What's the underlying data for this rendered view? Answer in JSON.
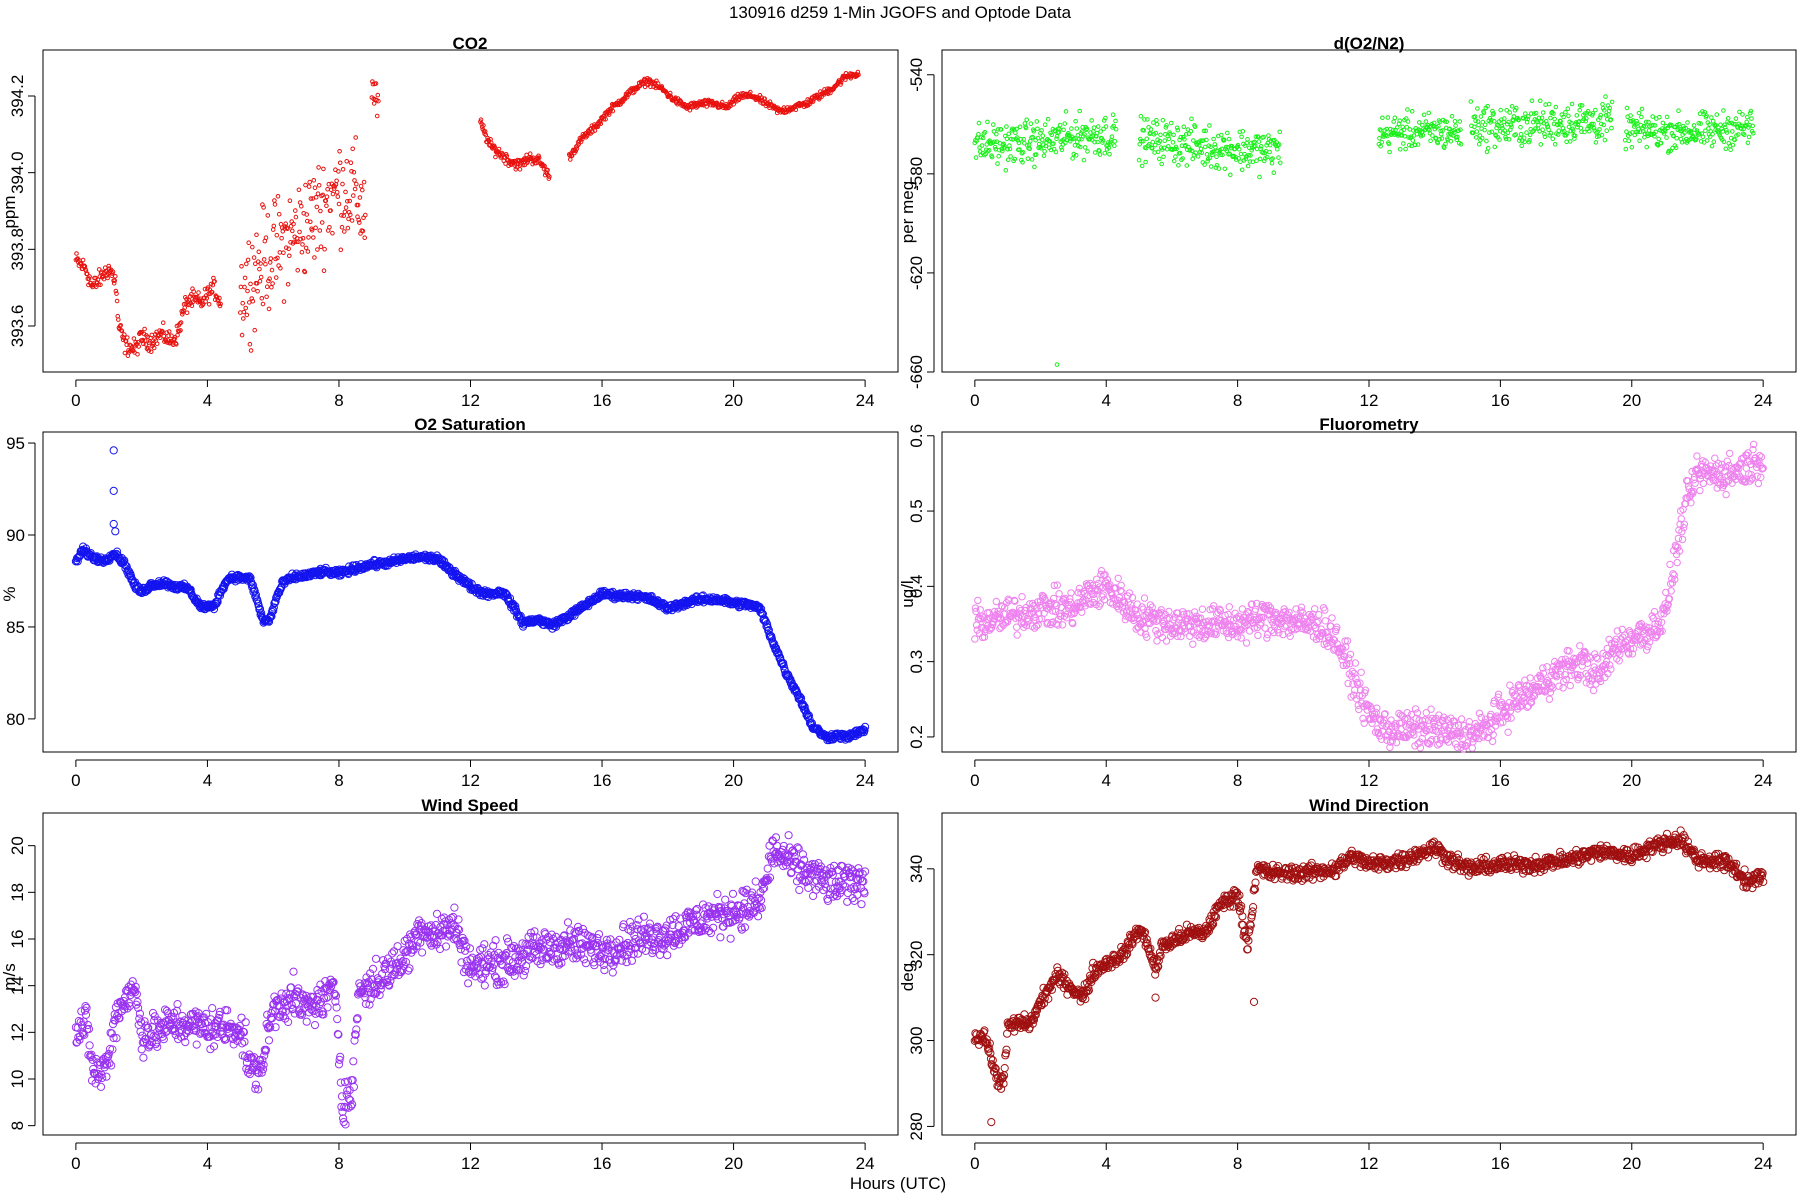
{
  "figure": {
    "suptitle": "130916   d259   1-Min  JGOFS and Optode Data",
    "xlabel": "Hours (UTC)"
  },
  "chart_data": [
    {
      "id": "co2",
      "type": "scatter",
      "title": "CO2",
      "ylabel": "ppm",
      "color": "#e8120f",
      "marker_radius_hint": "small",
      "xlim": [
        -1,
        25
      ],
      "xticks": [
        0,
        4,
        8,
        12,
        16,
        20,
        24
      ],
      "ylim": [
        393.48,
        394.32
      ],
      "yticks": [
        393.6,
        393.8,
        394.0,
        394.2
      ],
      "ytick_labels": [
        "393.6",
        "393.8",
        "394.0",
        "394.2"
      ],
      "ytick_rotate": true,
      "series": [
        {
          "name": "CO2",
          "segments": [
            {
              "x": [
                0,
                0.3,
                0.5,
                0.8,
                1.0,
                1.2,
                1.3,
                1.5,
                1.8,
                2.0,
                2.3,
                2.6,
                2.9,
                3.1,
                3.3,
                3.5,
                3.8,
                4.0,
                4.2,
                4.4
              ],
              "y": [
                393.77,
                393.75,
                393.7,
                393.73,
                393.75,
                393.72,
                393.6,
                393.55,
                393.54,
                393.57,
                393.56,
                393.58,
                393.56,
                393.58,
                393.65,
                393.67,
                393.66,
                393.68,
                393.7,
                393.66
              ],
              "scatter": 0.02
            },
            {
              "x": [
                5.0,
                5.3,
                5.6,
                6.0,
                6.4,
                6.8,
                7.2,
                7.6,
                8.0,
                8.4,
                8.8
              ],
              "y": [
                393.68,
                393.72,
                393.76,
                393.79,
                393.82,
                393.85,
                393.88,
                393.92,
                393.96,
                393.95,
                393.9
              ],
              "scatter": 0.11
            },
            {
              "x": [
                9.0,
                9.2
              ],
              "y": [
                394.22,
                394.17
              ],
              "scatter": 0.04
            },
            {
              "x": [
                12.3,
                12.6,
                12.9,
                13.2,
                13.5,
                13.8,
                14.1,
                14.4
              ],
              "y": [
                394.13,
                394.07,
                394.05,
                394.03,
                394.02,
                394.04,
                394.03,
                393.99
              ],
              "scatter": 0.012
            },
            {
              "x": [
                15.0,
                15.4,
                15.8,
                16.2,
                16.6,
                17.0,
                17.4,
                17.8,
                18.2,
                18.6,
                19.0,
                19.4,
                19.8,
                20.2,
                20.6,
                21.0,
                21.4,
                21.8,
                22.2,
                22.6,
                23.0,
                23.4,
                23.8
              ],
              "y": [
                394.04,
                394.09,
                394.12,
                394.16,
                394.19,
                394.22,
                394.24,
                394.22,
                394.19,
                394.17,
                394.18,
                394.18,
                394.17,
                394.2,
                394.2,
                394.18,
                394.16,
                394.17,
                394.18,
                394.2,
                394.22,
                394.25,
                394.26
              ],
              "scatter": 0.008
            }
          ]
        }
      ]
    },
    {
      "id": "o2n2",
      "type": "scatter",
      "title": "d(O2/N2)",
      "ylabel": "per meg",
      "color": "#18f018",
      "marker_radius_hint": "small",
      "xlim": [
        -1,
        25
      ],
      "xticks": [
        0,
        4,
        8,
        12,
        16,
        20,
        24
      ],
      "ylim": [
        -660,
        -530
      ],
      "yticks": [
        -660,
        -620,
        -580,
        -540
      ],
      "ytick_labels": [
        "-660",
        "-620",
        "-580",
        "-540"
      ],
      "ytick_rotate": true,
      "outliers": [
        {
          "x": 2.5,
          "y": -657
        }
      ],
      "series": [
        {
          "name": "d(O2/N2)",
          "segments": [
            {
              "x": [
                0,
                1,
                2,
                3,
                4,
                4.3
              ],
              "y": [
                -568,
                -568,
                -567,
                -565,
                -564,
                -565
              ],
              "scatter": 7
            },
            {
              "x": [
                5.0,
                6,
                7,
                8,
                9,
                9.3
              ],
              "y": [
                -566,
                -567,
                -569,
                -570,
                -571,
                -570
              ],
              "scatter": 7
            },
            {
              "x": [
                12.3,
                13,
                14,
                14.8
              ],
              "y": [
                -564,
                -563,
                -563,
                -563
              ],
              "scatter": 6
            },
            {
              "x": [
                15.1,
                16,
                17,
                18,
                19,
                19.4
              ],
              "y": [
                -560,
                -561,
                -560,
                -559,
                -559,
                -559
              ],
              "scatter": 7
            },
            {
              "x": [
                19.8,
                21,
                22,
                23,
                23.7
              ],
              "y": [
                -562,
                -563,
                -563,
                -562,
                -561
              ],
              "scatter": 6
            }
          ]
        }
      ]
    },
    {
      "id": "o2sat",
      "type": "scatter",
      "title": "O2 Saturation",
      "ylabel": "%",
      "color": "#1414f0",
      "marker_radius_hint": "large",
      "xlim": [
        -1,
        25
      ],
      "xticks": [
        0,
        4,
        8,
        12,
        16,
        20,
        24
      ],
      "ylim": [
        78.2,
        95.6
      ],
      "yticks": [
        80,
        85,
        90,
        95
      ],
      "ytick_labels": [
        "80",
        "85",
        "90",
        "95"
      ],
      "ytick_rotate": false,
      "outliers": [
        {
          "x": 1.15,
          "y": 94.6
        },
        {
          "x": 1.15,
          "y": 92.4
        },
        {
          "x": 1.15,
          "y": 90.6
        },
        {
          "x": 1.2,
          "y": 90.2
        }
      ],
      "series": [
        {
          "name": "O2 Saturation",
          "segments": [
            {
              "x": [
                0,
                0.2,
                0.5,
                0.8,
                1.0,
                1.2,
                1.5,
                1.8,
                2.0,
                2.3,
                2.7,
                3.0,
                3.4,
                3.6,
                3.8,
                4.2,
                4.5,
                4.7,
                5.0,
                5.3,
                5.5,
                5.7,
                5.9,
                6.1,
                6.3,
                6.6,
                7.0,
                7.5,
                8.0,
                8.5,
                9.0,
                9.5,
                10.0,
                10.5,
                11.0,
                11.3,
                11.6,
                12.0,
                12.3,
                12.6,
                13.0,
                13.3,
                13.6,
                14.0,
                14.5,
                15.0,
                15.5,
                16.0,
                16.5,
                17.0,
                17.5,
                18.0,
                18.5,
                19.0,
                19.5,
                20.0,
                20.5,
                20.8,
                21.2,
                21.6,
                22.0,
                22.4,
                22.8,
                23.2,
                23.5,
                23.8,
                24.0
              ],
              "y": [
                88.5,
                89.2,
                88.8,
                88.6,
                88.8,
                89.0,
                88.4,
                87.2,
                86.9,
                87.3,
                87.4,
                87.2,
                87.1,
                86.6,
                86.1,
                86.1,
                87.3,
                87.7,
                87.7,
                87.6,
                86.5,
                85.3,
                85.4,
                86.6,
                87.4,
                87.7,
                87.8,
                88.0,
                87.9,
                88.2,
                88.4,
                88.5,
                88.7,
                88.8,
                88.7,
                88.2,
                87.8,
                87.2,
                86.9,
                86.8,
                86.9,
                86.1,
                85.2,
                85.4,
                85.1,
                85.6,
                86.2,
                86.8,
                86.7,
                86.7,
                86.5,
                86.0,
                86.3,
                86.5,
                86.5,
                86.3,
                86.2,
                86.0,
                84.2,
                82.5,
                81.2,
                79.6,
                79.0,
                79.1,
                79.0,
                79.3,
                79.4
              ],
              "scatter": 0.15
            }
          ]
        }
      ]
    },
    {
      "id": "fluor",
      "type": "scatter",
      "title": "Fluorometry",
      "ylabel": "ug/l",
      "color": "#ee82ee",
      "marker_radius_hint": "medium",
      "xlim": [
        -1,
        25
      ],
      "xticks": [
        0,
        4,
        8,
        12,
        16,
        20,
        24
      ],
      "ylim": [
        0.18,
        0.605
      ],
      "yticks": [
        0.2,
        0.3,
        0.4,
        0.5,
        0.6
      ],
      "ytick_labels": [
        "0.2",
        "0.3",
        "0.4",
        "0.5",
        "0.6"
      ],
      "ytick_rotate": true,
      "series": [
        {
          "name": "Fluorometry",
          "segments": [
            {
              "x": [
                0,
                1,
                2,
                3,
                3.5,
                4.0,
                4.5,
                5.0,
                6,
                7,
                8,
                9,
                10,
                10.5,
                11.0,
                11.5,
                12.0,
                12.5,
                13,
                14,
                15,
                15.5,
                16,
                16.5,
                17,
                17.5,
                18,
                18.5,
                19,
                19.5,
                20,
                20.5,
                21,
                21.3,
                21.6,
                22,
                23,
                24
              ],
              "y": [
                0.35,
                0.36,
                0.37,
                0.37,
                0.39,
                0.4,
                0.38,
                0.36,
                0.35,
                0.35,
                0.35,
                0.36,
                0.35,
                0.35,
                0.33,
                0.28,
                0.23,
                0.21,
                0.21,
                0.21,
                0.2,
                0.21,
                0.23,
                0.25,
                0.26,
                0.28,
                0.29,
                0.3,
                0.28,
                0.32,
                0.33,
                0.34,
                0.36,
                0.43,
                0.5,
                0.55,
                0.55,
                0.57
              ],
              "scatter": 0.02
            }
          ]
        }
      ]
    },
    {
      "id": "wspd",
      "type": "scatter",
      "title": "Wind Speed",
      "ylabel": "m/s",
      "color": "#9932f0",
      "marker_radius_hint": "large",
      "xlim": [
        -1,
        25
      ],
      "xticks": [
        0,
        4,
        8,
        12,
        16,
        20,
        24
      ],
      "ylim": [
        7.6,
        21.4
      ],
      "yticks": [
        8,
        10,
        12,
        14,
        16,
        18,
        20
      ],
      "ytick_labels": [
        "8",
        "10",
        "12",
        "14",
        "16",
        "18",
        "20"
      ],
      "ytick_rotate": true,
      "series": [
        {
          "name": "Wind Speed",
          "segments": [
            {
              "x": [
                0,
                0.3,
                0.5,
                0.7,
                1.0,
                1.2,
                1.5,
                1.8,
                2.0,
                2.3,
                3,
                4,
                5,
                5.3,
                5.6,
                6,
                6.5,
                7,
                7.5,
                7.9,
                8.1,
                8.4,
                8.6,
                9,
                10,
                10.5,
                11,
                11.5,
                12,
                13,
                14,
                15,
                16,
                17,
                18,
                19,
                20,
                20.8,
                21.2,
                22,
                23,
                24
              ],
              "y": [
                12.0,
                12.4,
                10.5,
                10.2,
                10.8,
                12.7,
                13.5,
                13.8,
                12.0,
                11.9,
                12.4,
                12.2,
                12.2,
                10.4,
                10.3,
                13.0,
                13.5,
                13.0,
                13.4,
                13.8,
                9.0,
                9.4,
                13.8,
                14.0,
                15.2,
                16.5,
                16.2,
                16.6,
                14.8,
                15.0,
                15.5,
                15.8,
                15.5,
                16.0,
                16.2,
                16.8,
                17.2,
                17.5,
                19.8,
                19.0,
                18.3,
                18.5
              ],
              "scatter": 0.7
            }
          ]
        }
      ]
    },
    {
      "id": "wdir",
      "type": "scatter",
      "title": "Wind Direction",
      "ylabel": "deg",
      "color": "#a01010",
      "marker_radius_hint": "large",
      "xlim": [
        -1,
        25
      ],
      "xticks": [
        0,
        4,
        8,
        12,
        16,
        20,
        24
      ],
      "ylim": [
        278,
        353
      ],
      "yticks": [
        280,
        300,
        320,
        340
      ],
      "ytick_labels": [
        "280",
        "300",
        "320",
        "340"
      ],
      "ytick_rotate": true,
      "outliers": [
        {
          "x": 0.5,
          "y": 281
        },
        {
          "x": 8.5,
          "y": 309
        },
        {
          "x": 5.5,
          "y": 310
        }
      ],
      "series": [
        {
          "name": "Wind Direction",
          "segments": [
            {
              "x": [
                0,
                0.3,
                0.5,
                0.7,
                0.9,
                1.0,
                1.3,
                1.7,
                2.0,
                2.5,
                3.0,
                3.3,
                3.6,
                4.0,
                4.5,
                5.0,
                5.3,
                5.5,
                5.7,
                6.0,
                6.5,
                7.0,
                7.5,
                8.0,
                8.3,
                8.6,
                9.0,
                10,
                11,
                11.5,
                12,
                13,
                14,
                14.5,
                15,
                16,
                17,
                18,
                19,
                20,
                20.5,
                21,
                21.5,
                22,
                22.5,
                23,
                23.5,
                24
              ],
              "y": [
                301,
                301,
                296,
                290,
                292,
                303,
                304,
                304,
                309,
                315,
                312,
                310,
                316,
                318,
                320,
                326,
                322,
                316,
                322,
                323,
                325,
                325,
                332,
                334,
                322,
                340,
                339,
                339,
                340,
                343,
                341,
                342,
                345,
                342,
                340,
                341,
                341,
                342,
                344,
                343,
                345,
                346,
                347,
                342,
                342,
                341,
                337,
                338
              ],
              "scatter": 1.5
            }
          ]
        }
      ]
    }
  ]
}
